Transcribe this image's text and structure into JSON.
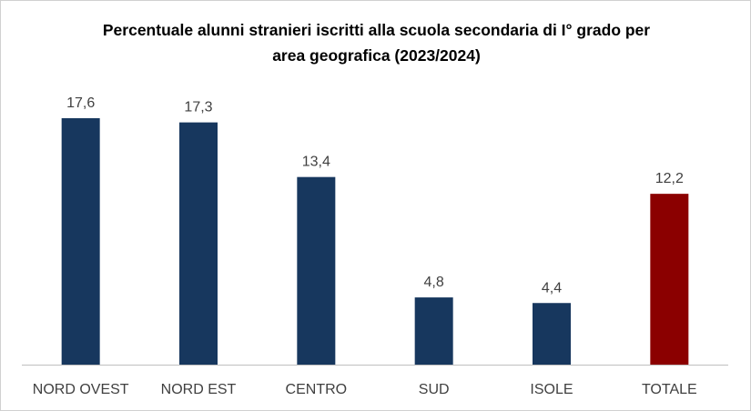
{
  "chart_data": {
    "type": "bar",
    "title_lines": [
      "Percentuale alunni stranieri iscritti alla scuola secondaria di I° grado per",
      "area geografica (2023/2024)"
    ],
    "categories": [
      "NORD OVEST",
      "NORD EST",
      "CENTRO",
      "SUD",
      "ISOLE",
      "TOTALE"
    ],
    "values": [
      17.6,
      17.3,
      13.4,
      4.8,
      4.4,
      12.2
    ],
    "value_labels": [
      "17,6",
      "17,3",
      "13,4",
      "4,8",
      "4,4",
      "12,2"
    ],
    "colors": [
      "#17375e",
      "#17375e",
      "#17375e",
      "#17375e",
      "#17375e",
      "#8b0000"
    ],
    "xlabel": "",
    "ylabel": "",
    "ylim": [
      0,
      17.6
    ],
    "grid": false,
    "legend": "none"
  }
}
